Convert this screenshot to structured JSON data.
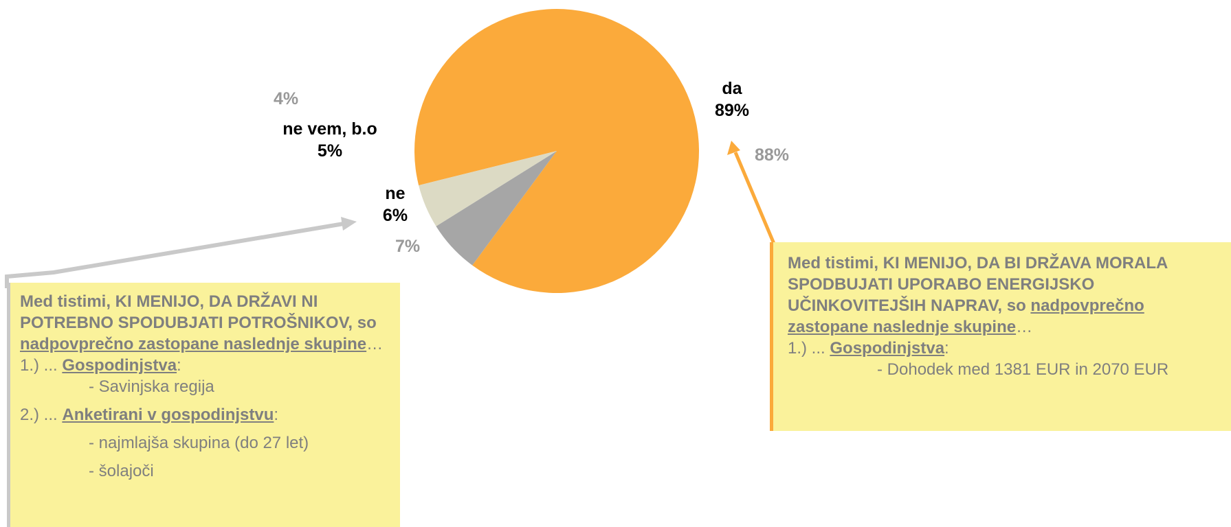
{
  "colors": {
    "da": "#fbaa3b",
    "ne": "#a6a6a6",
    "ne_vem": "#dcdac4",
    "box_fill": "#faf29b",
    "box_text": "#7f7f7f",
    "left_border": "#c9c9c9",
    "right_border": "#fbaa3b"
  },
  "chart_data": {
    "type": "pie",
    "slices": [
      {
        "key": "da",
        "label": "da",
        "value": 89,
        "value_label": "89%",
        "previous_label": "88%"
      },
      {
        "key": "ne",
        "label": "ne",
        "value": 6,
        "value_label": "6%",
        "previous_label": "7%"
      },
      {
        "key": "ne_vem",
        "label": "ne vem, b.o",
        "value": 5,
        "value_label": "5%",
        "previous_label": "4%"
      }
    ]
  },
  "left_box": {
    "intro_bold": "Med tistimi, KI MENIJO, DA DRŽAVI NI POTREBNO SPODUBJATI POTROŠNIKOV, so",
    "intro_underlined": "nadpovprečno zastopane naslednje skupine",
    "intro_tail": "…",
    "group1_prefix": "1.) ... ",
    "group1_name": "Gospodinjstva",
    "group1_colon": ":",
    "group1_items": [
      "- Savinjska regija"
    ],
    "group2_prefix": "2.) ... ",
    "group2_name": "Anketirani v gospodinjstvu",
    "group2_colon": ":",
    "group2_items": [
      "- najmlajša skupina (do 27 let)",
      "- šolajoči"
    ]
  },
  "right_box": {
    "intro_bold": "Med tistimi, KI MENIJO, DA BI DRŽAVA MORALA SPODBUJATI UPORABO ENERGIJSKO UČINKOVITEJŠIH NAPRAV, so",
    "intro_underlined": "nadpovprečno zastopane naslednje skupine",
    "intro_tail": "…",
    "group1_prefix": "1.) ... ",
    "group1_name": "Gospodinjstva",
    "group1_colon": ":",
    "group1_items": [
      "- Dohodek  med 1381 EUR in 2070 EUR"
    ]
  }
}
